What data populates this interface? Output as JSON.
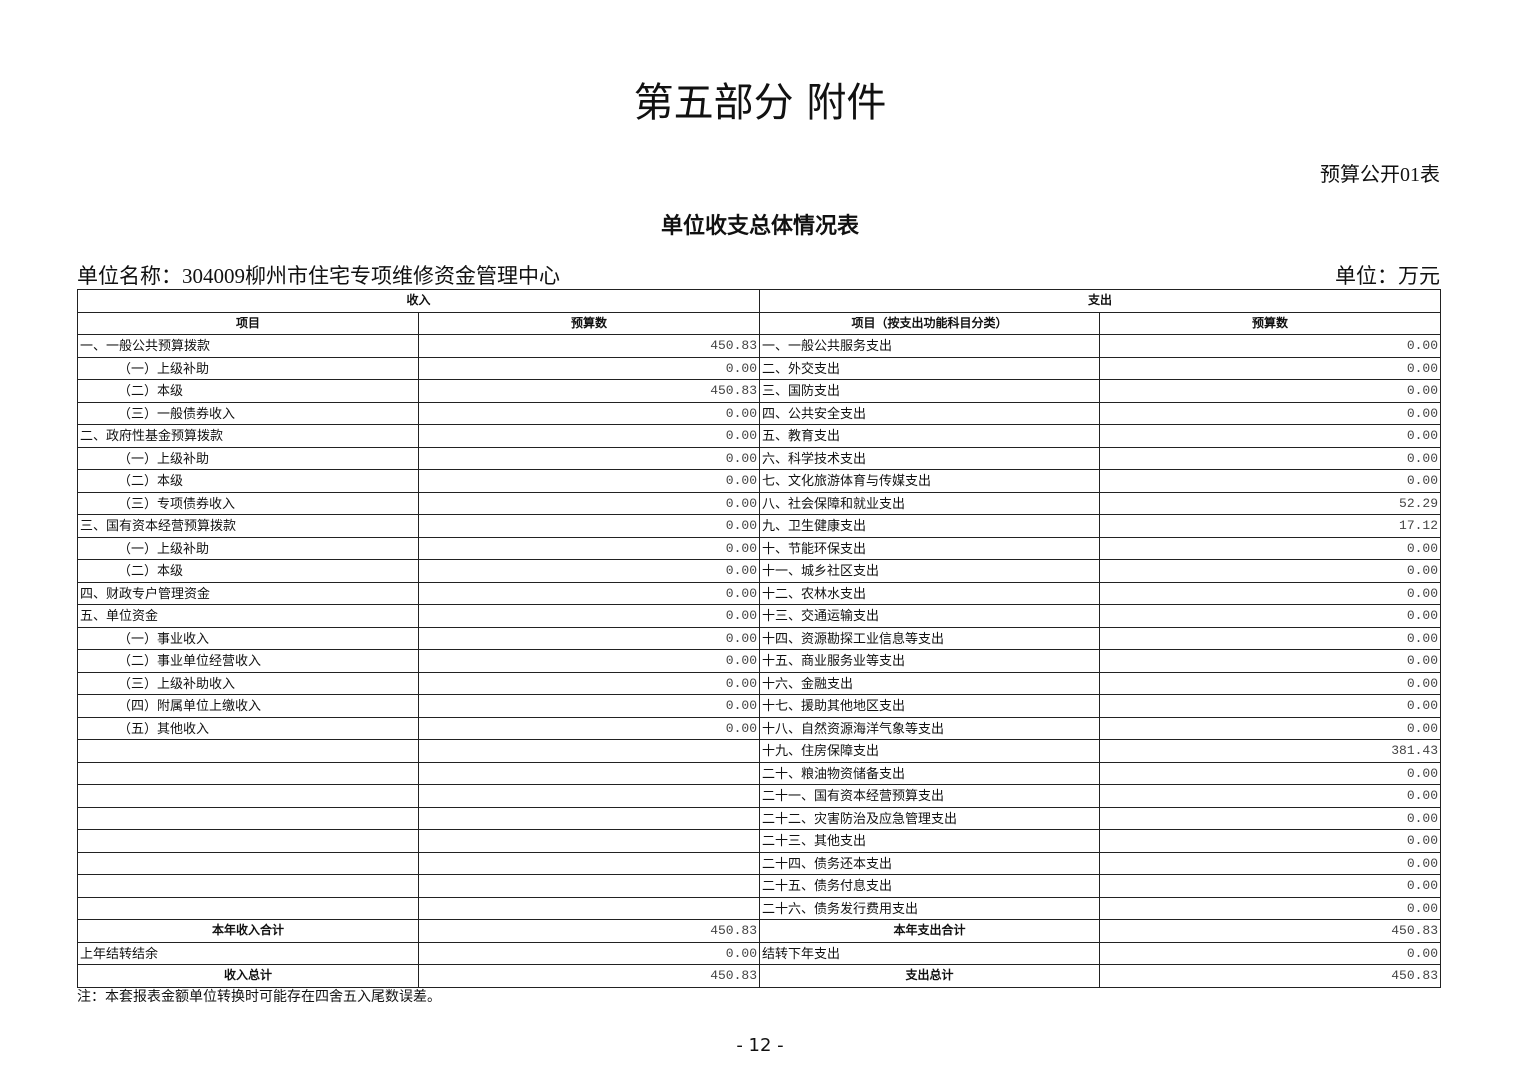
{
  "header": {
    "title": "第五部分  附件",
    "form_code": "预算公开01表",
    "subtitle": "单位收支总体情况表",
    "unit_name": "单位名称：304009柳州市住宅专项维修资金管理中心",
    "unit": "单位：万元"
  },
  "table": {
    "group_headers": [
      "收入",
      "支出"
    ],
    "column_headers": [
      "项目",
      "预算数",
      "项目（按支出功能科目分类）",
      "预算数"
    ],
    "rows": [
      [
        "一、一般公共预算拨款",
        "450.83",
        "一、一般公共服务支出",
        "0.00"
      ],
      [
        "（一）上级补助",
        "0.00",
        "二、外交支出",
        "0.00"
      ],
      [
        "（二）本级",
        "450.83",
        "三、国防支出",
        "0.00"
      ],
      [
        "（三）一般债券收入",
        "0.00",
        "四、公共安全支出",
        "0.00"
      ],
      [
        "二、政府性基金预算拨款",
        "0.00",
        "五、教育支出",
        "0.00"
      ],
      [
        "（一）上级补助",
        "0.00",
        "六、科学技术支出",
        "0.00"
      ],
      [
        "（二）本级",
        "0.00",
        "七、文化旅游体育与传媒支出",
        "0.00"
      ],
      [
        "（三）专项债券收入",
        "0.00",
        "八、社会保障和就业支出",
        "52.29"
      ],
      [
        "三、国有资本经营预算拨款",
        "0.00",
        "九、卫生健康支出",
        "17.12"
      ],
      [
        "（一）上级补助",
        "0.00",
        "十、节能环保支出",
        "0.00"
      ],
      [
        "（二）本级",
        "0.00",
        "十一、城乡社区支出",
        "0.00"
      ],
      [
        "四、财政专户管理资金",
        "0.00",
        "十二、农林水支出",
        "0.00"
      ],
      [
        "五、单位资金",
        "0.00",
        "十三、交通运输支出",
        "0.00"
      ],
      [
        "（一）事业收入",
        "0.00",
        "十四、资源勘探工业信息等支出",
        "0.00"
      ],
      [
        "（二）事业单位经营收入",
        "0.00",
        "十五、商业服务业等支出",
        "0.00"
      ],
      [
        "（三）上级补助收入",
        "0.00",
        "十六、金融支出",
        "0.00"
      ],
      [
        "（四）附属单位上缴收入",
        "0.00",
        "十七、援助其他地区支出",
        "0.00"
      ],
      [
        "（五）其他收入",
        "0.00",
        "十八、自然资源海洋气象等支出",
        "0.00"
      ],
      [
        null,
        null,
        "十九、住房保障支出",
        "381.43"
      ],
      [
        null,
        null,
        "二十、粮油物资储备支出",
        "0.00"
      ],
      [
        null,
        null,
        "二十一、国有资本经营预算支出",
        "0.00"
      ],
      [
        null,
        null,
        "二十二、灾害防治及应急管理支出",
        "0.00"
      ],
      [
        null,
        null,
        "二十三、其他支出",
        "0.00"
      ],
      [
        null,
        null,
        "二十四、债务还本支出",
        "0.00"
      ],
      [
        null,
        null,
        "二十五、债务付息支出",
        "0.00"
      ],
      [
        null,
        null,
        "二十六、债务发行费用支出",
        "0.00"
      ]
    ],
    "summary_rows": [
      [
        "本年收入合计",
        "450.83",
        "本年支出合计",
        "450.83"
      ],
      [
        "上年结转结余",
        "0.00",
        "结转下年支出",
        "0.00"
      ],
      [
        "收入总计",
        "450.83",
        "支出总计",
        "450.83"
      ]
    ]
  },
  "footer": {
    "note": "注：本套报表金额单位转换时可能存在四舍五入尾数误差。",
    "page_number": "- 12 -"
  }
}
